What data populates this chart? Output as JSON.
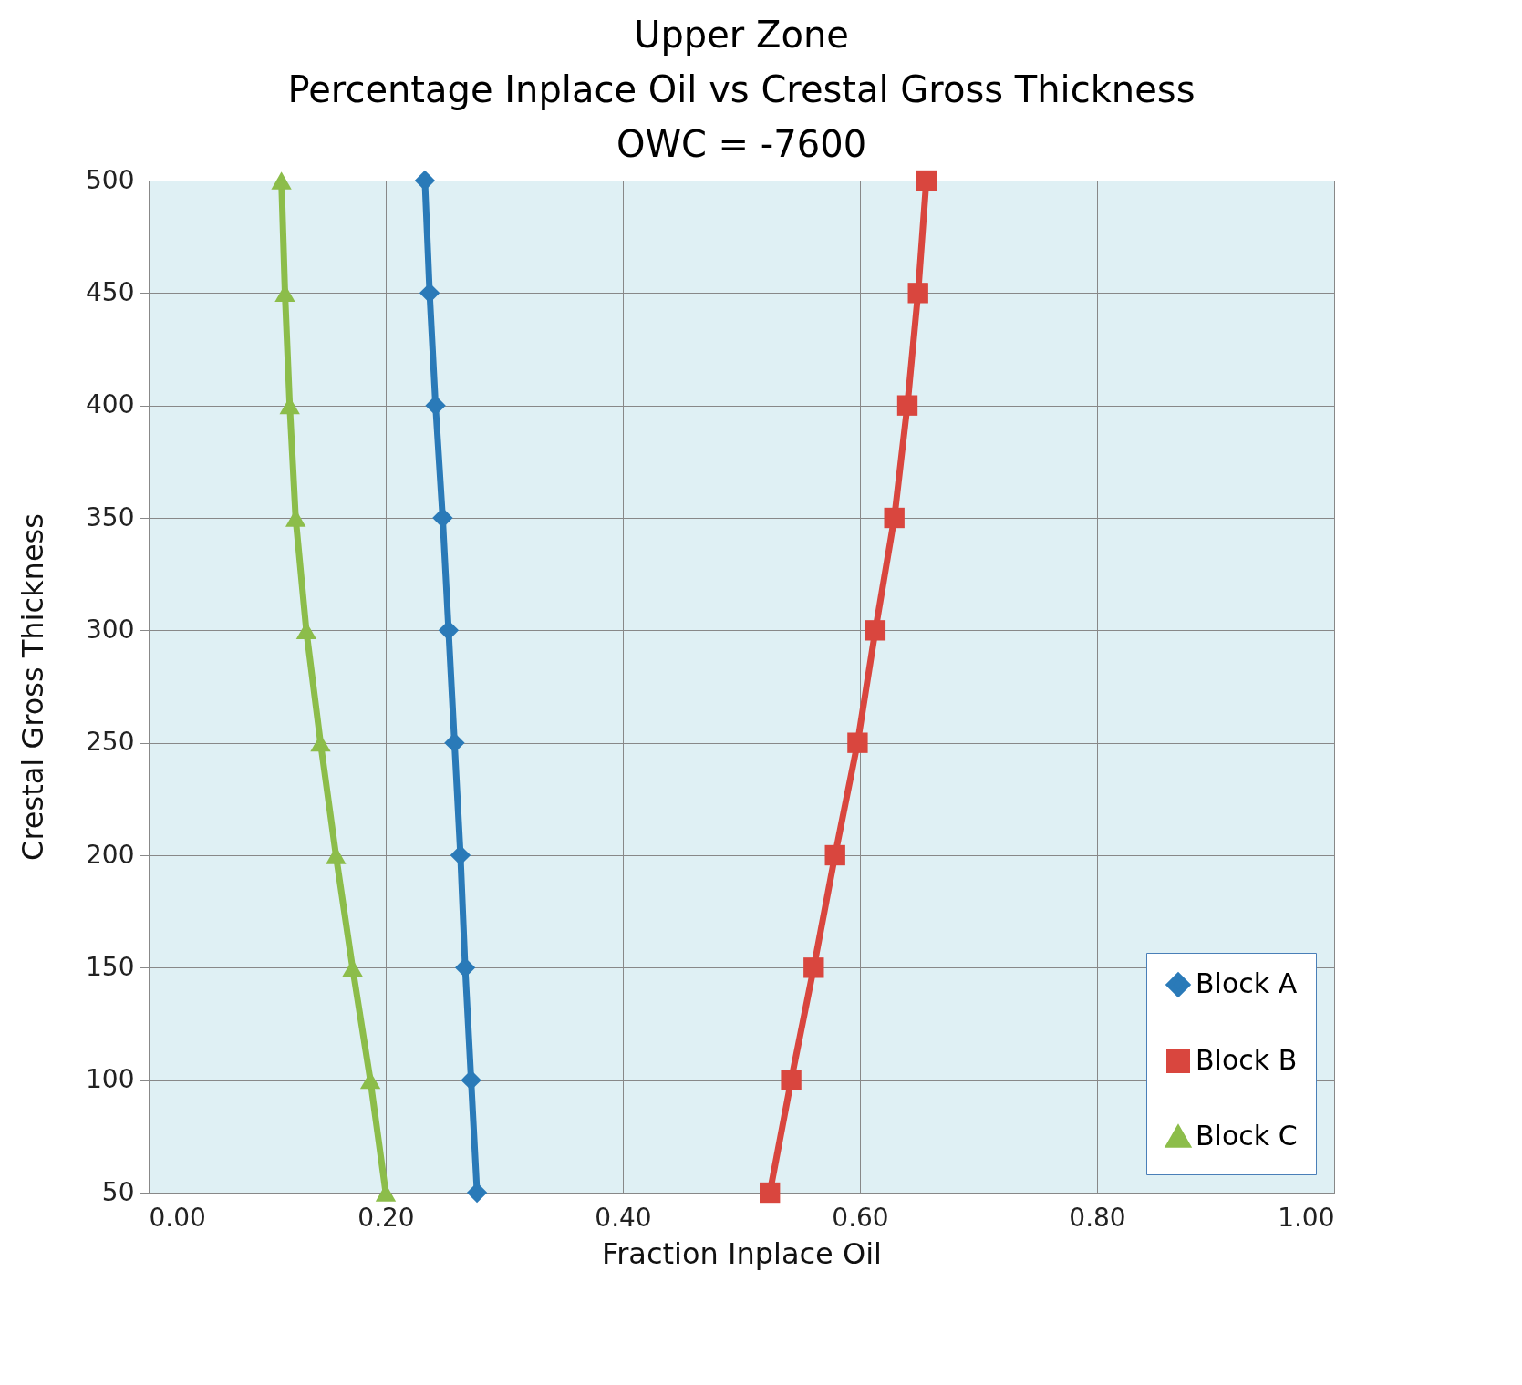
{
  "chart_data": {
    "type": "line",
    "title": "Upper Zone\nPercentage Inplace Oil vs Crestal Gross Thickness\nOWC = -7600",
    "xlabel": "Fraction Inplace Oil",
    "ylabel": "Crestal Gross Thickness",
    "xlim": [
      0,
      1
    ],
    "xticks": [
      {
        "value": 0,
        "label": "0.00"
      },
      {
        "value": 0.2,
        "label": "0.20"
      },
      {
        "value": 0.4,
        "label": "0.40"
      },
      {
        "value": 0.6,
        "label": "0.60"
      },
      {
        "value": 0.8,
        "label": "0.80"
      },
      {
        "value": 1,
        "label": "1.00"
      }
    ],
    "ylim": [
      50,
      500
    ],
    "yticks": [
      50,
      100,
      150,
      200,
      250,
      300,
      350,
      400,
      450,
      500
    ],
    "grid": true,
    "legend": "bottom right",
    "series": [
      {
        "name": "Block A",
        "color": "#2a7ab8",
        "marker": "diamond",
        "x": [
          0.233,
          0.237,
          0.242,
          0.248,
          0.253,
          0.258,
          0.263,
          0.267,
          0.272,
          0.277
        ],
        "values": [
          500,
          450,
          400,
          350,
          300,
          250,
          200,
          150,
          100,
          50
        ]
      },
      {
        "name": "Block B",
        "color": "#d9463e",
        "marker": "square",
        "x": [
          0.656,
          0.649,
          0.64,
          0.629,
          0.613,
          0.598,
          0.579,
          0.561,
          0.542,
          0.524
        ],
        "values": [
          500,
          450,
          400,
          350,
          300,
          250,
          200,
          150,
          100,
          50
        ]
      },
      {
        "name": "Block C",
        "color": "#8cbd4a",
        "marker": "triangle",
        "x": [
          0.112,
          0.115,
          0.119,
          0.124,
          0.133,
          0.145,
          0.158,
          0.172,
          0.187,
          0.2
        ],
        "values": [
          500,
          450,
          400,
          350,
          300,
          250,
          200,
          150,
          100,
          50
        ]
      }
    ]
  }
}
